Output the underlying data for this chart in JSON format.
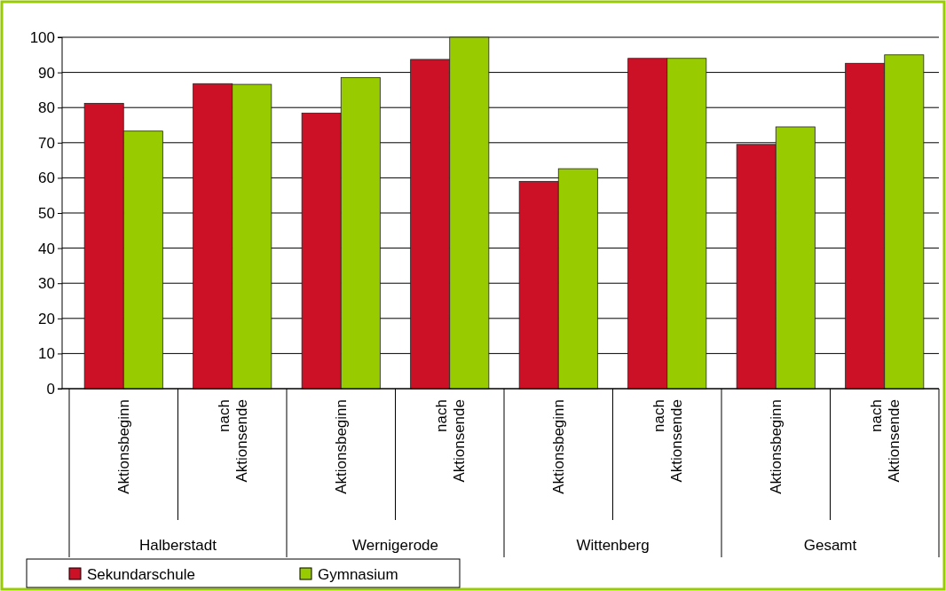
{
  "chart_data": {
    "type": "bar",
    "categories": [
      "Aktionsbeginn",
      "nach Aktionsende",
      "Aktionsbeginn",
      "nach Aktionsende",
      "Aktionsbeginn",
      "nach Aktionsende",
      "Aktionsbeginn",
      "nach Aktionsende"
    ],
    "series": [
      {
        "name": "Sekundarschule",
        "color": "#cc1126",
        "values": [
          81.2,
          86.8,
          78.4,
          93.7,
          59,
          94,
          69.5,
          92.6
        ]
      },
      {
        "name": "Gymnasium",
        "color": "#99cc00",
        "values": [
          73.3,
          86.6,
          88.5,
          100,
          62.6,
          94,
          74.5,
          95
        ]
      }
    ],
    "annotations": [
      "Halberstadt",
      "Wernigerode",
      "Wittenberg",
      "Gesamt"
    ],
    "ylim": [
      0,
      100
    ],
    "yticks": [
      0,
      10,
      20,
      30,
      40,
      50,
      60,
      70,
      80,
      90,
      100
    ],
    "grid": "y",
    "legend": "bottom"
  }
}
